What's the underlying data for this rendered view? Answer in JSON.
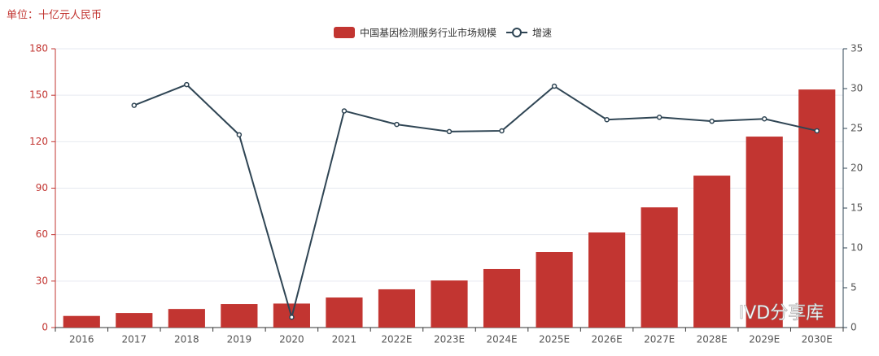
{
  "chart_data": {
    "type": "bar_line",
    "unit_label": "单位：十亿元人民币",
    "watermark": "IVD分享库",
    "categories": [
      "2016",
      "2017",
      "2018",
      "2019",
      "2020",
      "2021",
      "2022E",
      "2023E",
      "2024E",
      "2025E",
      "2026E",
      "2027E",
      "2028E",
      "2029E",
      "2030E"
    ],
    "series": [
      {
        "name": "中国基因检测服务行业市场规模",
        "color": "#c23531",
        "kind": "bar",
        "values": [
          7.5,
          9.4,
          12,
          15.2,
          15.5,
          19.4,
          24.7,
          30.4,
          37.8,
          48.8,
          61.4,
          77.6,
          98.1,
          123.3,
          153.7
        ]
      },
      {
        "name": "增速",
        "color": "#2f4554",
        "kind": "line",
        "axis": "y2",
        "values": [
          null,
          27.9,
          30.5,
          24.2,
          1.3,
          27.2,
          25.5,
          24.6,
          24.7,
          30.3,
          26.1,
          26.4,
          25.9,
          26.2,
          24.7
        ]
      }
    ],
    "ylim": [
      0,
      180
    ],
    "yticks": [
      0,
      30,
      60,
      90,
      120,
      150,
      180
    ],
    "y2lim": [
      0,
      35
    ],
    "y2ticks": [
      0,
      5,
      10,
      15,
      20,
      25,
      30,
      35
    ],
    "grid": true
  }
}
